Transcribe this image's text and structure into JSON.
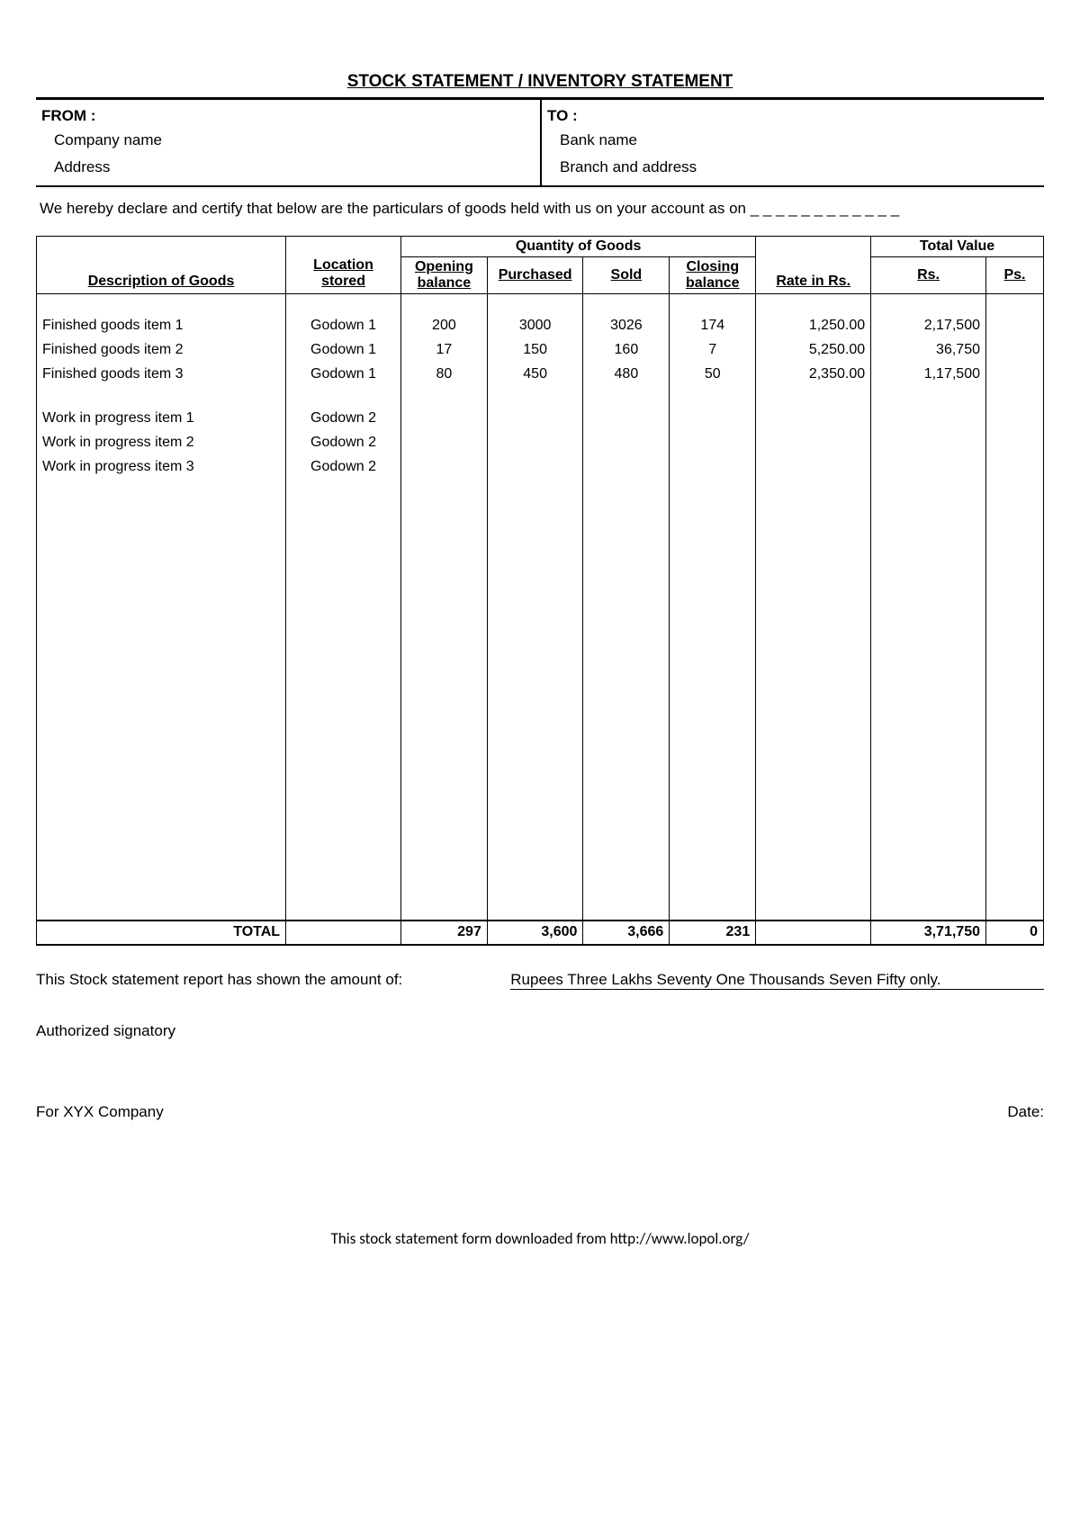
{
  "title": "STOCK STATEMENT / INVENTORY STATEMENT",
  "header": {
    "from_label": "FROM :",
    "from_line1": "Company name",
    "from_line2": "Address",
    "to_label": "TO :",
    "to_line1": "Bank name",
    "to_line2": "Branch and address"
  },
  "declaration": "We hereby declare and certify that below are the particulars of goods held with us on your account as on _ _ _ _ _ _ _ _ _ _ _ _",
  "table": {
    "group_qty": "Quantity of Goods",
    "group_total": "Total Value",
    "cols": {
      "desc": "Description of Goods",
      "location": "Location stored",
      "opening": "Opening balance",
      "purchased": "Purchased",
      "sold": "Sold",
      "closing": "Closing balance",
      "rate": "Rate in Rs.",
      "rs": "Rs.",
      "ps": "Ps."
    },
    "rows": [
      {
        "desc": "Finished goods item 1",
        "loc": "Godown 1",
        "open": "200",
        "purch": "3000",
        "sold": "3026",
        "close": "174",
        "rate": "1,250.00",
        "rs": "2,17,500",
        "ps": ""
      },
      {
        "desc": "Finished goods item 2",
        "loc": "Godown 1",
        "open": "17",
        "purch": "150",
        "sold": "160",
        "close": "7",
        "rate": "5,250.00",
        "rs": "36,750",
        "ps": ""
      },
      {
        "desc": "Finished goods item 3",
        "loc": "Godown 1",
        "open": "80",
        "purch": "450",
        "sold": "480",
        "close": "50",
        "rate": "2,350.00",
        "rs": "1,17,500",
        "ps": ""
      }
    ],
    "rows2": [
      {
        "desc": "Work in progress item 1",
        "loc": "Godown 2"
      },
      {
        "desc": "Work in progress item 2",
        "loc": "Godown 2"
      },
      {
        "desc": "Work in progress item 3",
        "loc": "Godown 2"
      }
    ],
    "total_label": "TOTAL",
    "totals": {
      "open": "297",
      "purch": "3,600",
      "sold": "3,666",
      "close": "231",
      "rs": "3,71,750",
      "ps": "0"
    }
  },
  "below": {
    "amount_label": "This Stock statement report has shown the amount of:",
    "amount_words": "Rupees Three Lakhs Seventy One Thousands Seven Fifty only.",
    "auth_sign": "Authorized signatory",
    "for_company": "For XYX Company",
    "date_label": "Date:"
  },
  "download_note": "This stock statement form downloaded from http://www.lopol.org/"
}
